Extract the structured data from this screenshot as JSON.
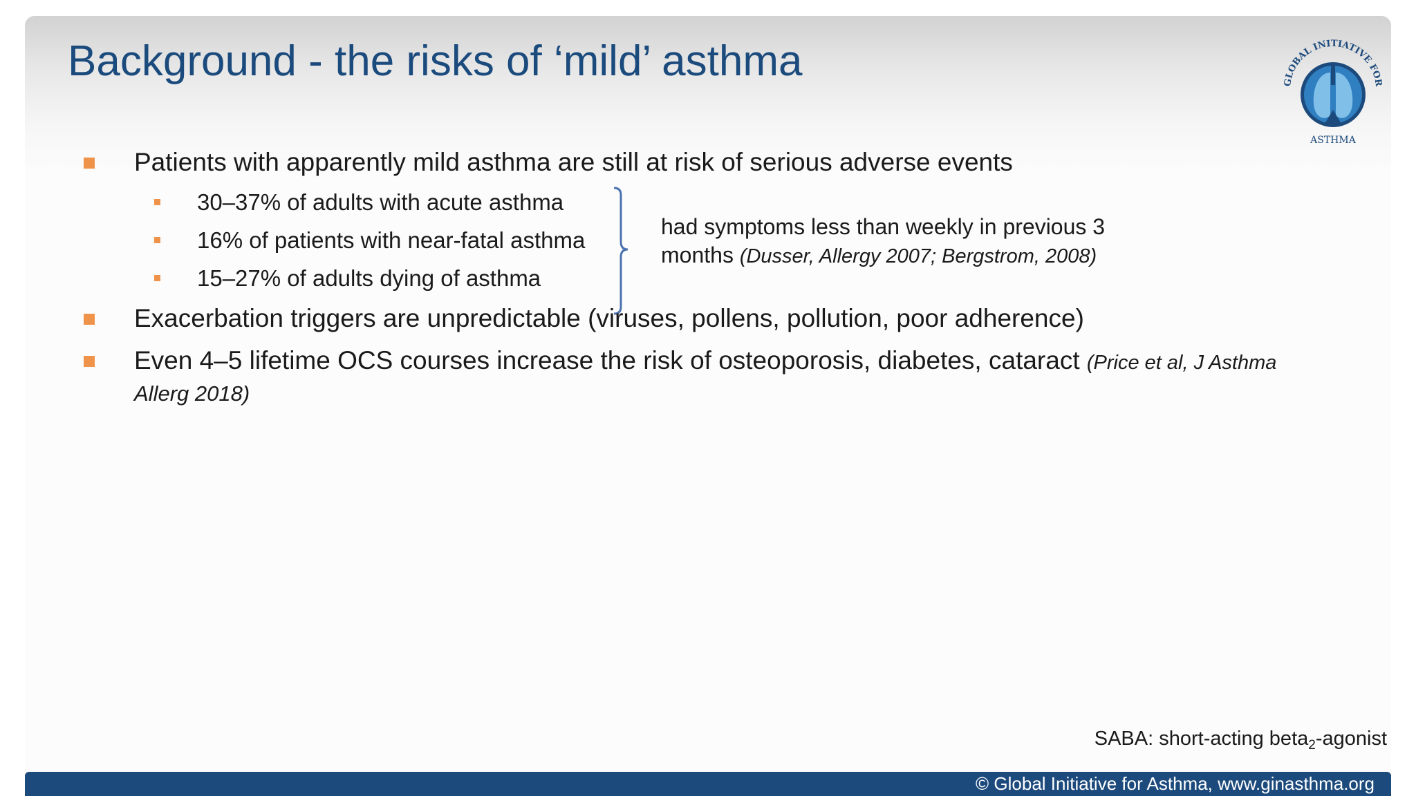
{
  "slide": {
    "title": "Background - the risks of ‘mild’ asthma"
  },
  "logo": {
    "text_top": "GLOBAL INITIATIVE FOR",
    "text_bottom": "ASTHMA",
    "colors": {
      "ring": "#1d4a7c",
      "lungs": "#2f7fc1"
    }
  },
  "bullets": [
    {
      "text": "Patients with apparently mild asthma are still at risk of serious adverse events",
      "sub": [
        "30–37% of adults with acute asthma",
        "16% of patients with near-fatal asthma",
        "15–27% of adults dying of asthma"
      ]
    },
    {
      "text": "Exacerbation triggers are unpredictable (viruses, pollens, pollution, poor adherence)"
    },
    {
      "text_line1": "Even 4–5 lifetime OCS courses increase the risk of osteoporosis, diabetes, cataract",
      "citation_part1": "(Price et al, J Asthma",
      "citation_part2": "Allerg 2018)"
    }
  ],
  "brace_note": {
    "line1": "had symptoms less than weekly in previous 3",
    "line2": "months",
    "citation": "(Dusser, Allergy 2007; Bergstrom, 2008)"
  },
  "abbreviation": {
    "prefix": "SABA: short-acting beta",
    "subscript": "2",
    "suffix": "-agonist"
  },
  "footer": {
    "text": "© Global Initiative for Asthma, www.ginasthma.org"
  },
  "colors": {
    "title": "#1b4a7d",
    "bullet": "#f0934a",
    "brace": "#4a72b0",
    "footer_bg": "#1d4a7c"
  }
}
